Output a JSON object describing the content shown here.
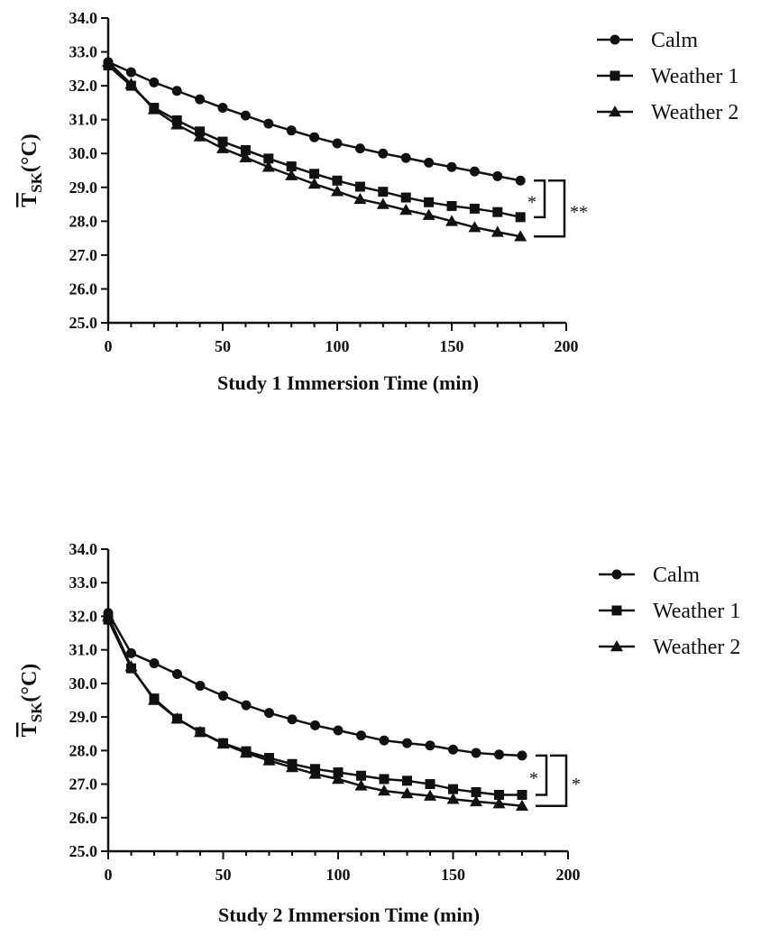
{
  "chart_data": [
    {
      "type": "line",
      "xlabel": "Study 1 Immersion Time (min)",
      "ylabel": {
        "main": "T",
        "sub": "SK",
        "unit": "(°C)"
      },
      "xlim": [
        0,
        200
      ],
      "ylim": [
        25.0,
        34.0
      ],
      "x_ticks": [
        "0",
        "50",
        "100",
        "150",
        "200"
      ],
      "y_ticks": [
        "25.0",
        "26.0",
        "27.0",
        "28.0",
        "29.0",
        "30.0",
        "31.0",
        "32.0",
        "33.0",
        "34.0"
      ],
      "legend_position": "top-right",
      "grid": false,
      "x": [
        0,
        10,
        20,
        30,
        40,
        50,
        60,
        70,
        80,
        90,
        100,
        110,
        120,
        130,
        140,
        150,
        160,
        170,
        180
      ],
      "series": [
        {
          "name": "Calm",
          "marker": "circle",
          "values": [
            32.7,
            32.4,
            32.1,
            31.85,
            31.6,
            31.35,
            31.12,
            30.88,
            30.68,
            30.48,
            30.3,
            30.15,
            30.0,
            29.87,
            29.73,
            29.6,
            29.47,
            29.33,
            29.2
          ]
        },
        {
          "name": "Weather 1",
          "marker": "square",
          "values": [
            32.6,
            32.0,
            31.35,
            30.98,
            30.65,
            30.35,
            30.1,
            29.85,
            29.62,
            29.4,
            29.2,
            29.02,
            28.87,
            28.7,
            28.56,
            28.45,
            28.37,
            28.27,
            28.12
          ]
        },
        {
          "name": "Weather 2",
          "marker": "triangle",
          "values": [
            32.7,
            32.05,
            31.3,
            30.85,
            30.5,
            30.15,
            29.88,
            29.6,
            29.35,
            29.1,
            28.88,
            28.65,
            28.5,
            28.33,
            28.18,
            28.0,
            27.82,
            27.68,
            27.55
          ]
        }
      ],
      "annotations": [
        {
          "text": "*",
          "between": [
            "Calm",
            "Weather 1"
          ]
        },
        {
          "text": "**",
          "between": [
            "Calm",
            "Weather 2"
          ]
        }
      ]
    },
    {
      "type": "line",
      "xlabel": "Study 2 Immersion Time (min)",
      "ylabel": {
        "main": "T",
        "sub": "SK",
        "unit": "(°C)"
      },
      "xlim": [
        0,
        200
      ],
      "ylim": [
        25.0,
        34.0
      ],
      "x_ticks": [
        "0",
        "50",
        "100",
        "150",
        "200"
      ],
      "y_ticks": [
        "25.0",
        "26.0",
        "27.0",
        "28.0",
        "29.0",
        "30.0",
        "31.0",
        "32.0",
        "33.0",
        "34.0"
      ],
      "legend_position": "top-right",
      "grid": false,
      "x": [
        0,
        10,
        20,
        30,
        40,
        50,
        60,
        70,
        80,
        90,
        100,
        110,
        120,
        130,
        140,
        150,
        160,
        170,
        180
      ],
      "series": [
        {
          "name": "Calm",
          "marker": "circle",
          "values": [
            32.1,
            30.9,
            30.6,
            30.28,
            29.93,
            29.63,
            29.35,
            29.12,
            28.93,
            28.75,
            28.6,
            28.45,
            28.3,
            28.22,
            28.15,
            28.03,
            27.93,
            27.88,
            27.85
          ]
        },
        {
          "name": "Weather 1",
          "marker": "square",
          "values": [
            31.9,
            30.45,
            29.55,
            28.95,
            28.55,
            28.22,
            27.98,
            27.78,
            27.6,
            27.45,
            27.35,
            27.25,
            27.15,
            27.1,
            27.0,
            26.85,
            26.76,
            26.68,
            26.68
          ]
        },
        {
          "name": "Weather 2",
          "marker": "triangle",
          "values": [
            32.0,
            30.5,
            29.5,
            28.95,
            28.55,
            28.2,
            27.93,
            27.7,
            27.5,
            27.3,
            27.15,
            26.95,
            26.8,
            26.72,
            26.65,
            26.55,
            26.48,
            26.42,
            26.35
          ]
        }
      ],
      "annotations": [
        {
          "text": "*",
          "between": [
            "Calm",
            "Weather 1"
          ]
        },
        {
          "text": "*",
          "between": [
            "Calm",
            "Weather 2"
          ]
        }
      ]
    }
  ]
}
